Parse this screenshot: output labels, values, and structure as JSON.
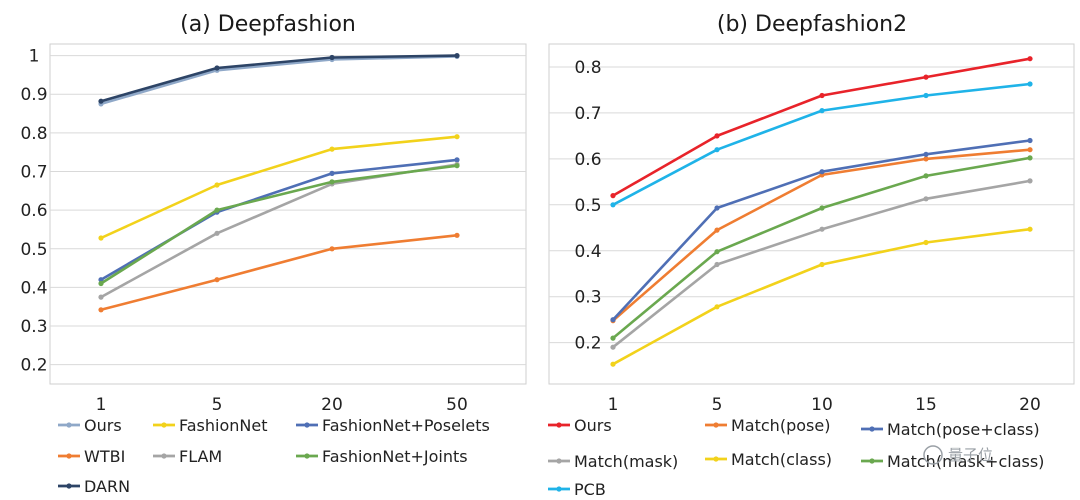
{
  "chart_data": [
    {
      "type": "line",
      "title": "(a)  Deepfashion",
      "xlabel": "",
      "ylabel": "",
      "categories": [
        "1",
        "5",
        "20",
        "50"
      ],
      "ylim": [
        0.15,
        1.03
      ],
      "yticks": [
        "1",
        "0.9",
        "0.8",
        "0.7",
        "0.6",
        "0.5",
        "0.4",
        "0.3",
        "0.2"
      ],
      "ytick_values": [
        1,
        0.9,
        0.8,
        0.7,
        0.6,
        0.5,
        0.4,
        0.3,
        0.2
      ],
      "grid": true,
      "series": [
        {
          "name": "Ours",
          "color": "#8fa8c8",
          "values": [
            0.875,
            0.962,
            0.99,
            0.998
          ]
        },
        {
          "name": "FashionNet",
          "color": "#f2d21b",
          "values": [
            0.528,
            0.665,
            0.758,
            0.79
          ]
        },
        {
          "name": "FashionNet+Poselets",
          "color": "#4f6fb5",
          "values": [
            0.42,
            0.595,
            0.695,
            0.73
          ]
        },
        {
          "name": "WTBI",
          "color": "#ef7d32",
          "values": [
            0.342,
            0.42,
            0.5,
            0.535
          ]
        },
        {
          "name": "FLAM",
          "color": "#a5a5a5",
          "values": [
            0.375,
            0.54,
            0.668,
            0.718
          ]
        },
        {
          "name": "FashionNet+Joints",
          "color": "#6aa84f",
          "values": [
            0.41,
            0.6,
            0.673,
            0.715
          ]
        },
        {
          "name": "DARN",
          "color": "#2d4466",
          "values": [
            0.882,
            0.968,
            0.995,
            1.0
          ]
        }
      ]
    },
    {
      "type": "line",
      "title": "(b)  Deepfashion2",
      "xlabel": "",
      "ylabel": "",
      "categories": [
        "1",
        "5",
        "10",
        "15",
        "20"
      ],
      "ylim": [
        0.11,
        0.85
      ],
      "yticks": [
        "0.8",
        "0.7",
        "0.6",
        "0.5",
        "0.4",
        "0.3",
        "0.2"
      ],
      "ytick_values": [
        0.8,
        0.7,
        0.6,
        0.5,
        0.4,
        0.3,
        0.2
      ],
      "grid": true,
      "series": [
        {
          "name": "Ours",
          "color": "#e8232a",
          "values": [
            0.52,
            0.65,
            0.738,
            0.778,
            0.818
          ]
        },
        {
          "name": "Match(pose)",
          "color": "#ef7d32",
          "values": [
            0.248,
            0.445,
            0.565,
            0.6,
            0.62
          ]
        },
        {
          "name": "Match(pose+class)",
          "color": "#4f6fb5",
          "values": [
            0.25,
            0.493,
            0.572,
            0.61,
            0.64
          ]
        },
        {
          "name": "Match(mask)",
          "color": "#a5a5a5",
          "values": [
            0.19,
            0.37,
            0.447,
            0.513,
            0.552
          ]
        },
        {
          "name": "Match(class)",
          "color": "#f2d21b",
          "values": [
            0.153,
            0.278,
            0.37,
            0.418,
            0.447
          ]
        },
        {
          "name": "Match(mask+class)",
          "color": "#6aa84f",
          "values": [
            0.21,
            0.398,
            0.493,
            0.563,
            0.602
          ]
        },
        {
          "name": "PCB",
          "color": "#1fb3e8",
          "values": [
            0.5,
            0.62,
            0.705,
            0.738,
            0.763
          ]
        }
      ]
    }
  ],
  "watermark": "量子位"
}
